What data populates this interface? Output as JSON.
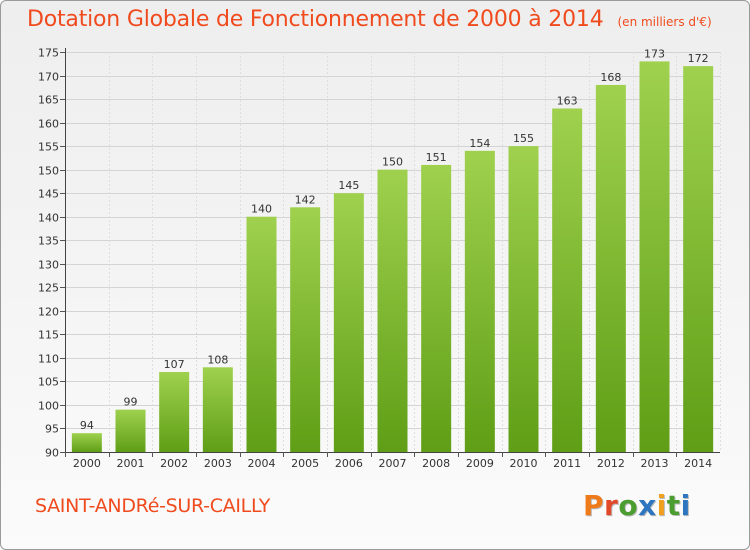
{
  "header": {
    "title": "Dotation Globale de Fonctionnement de 2000 à 2014",
    "unit": "(en milliers d'€)"
  },
  "footer": {
    "town": "SAINT-ANDRé-SUR-CAILLY",
    "brand_letters": [
      "P",
      "r",
      "o",
      "x",
      "i",
      "t",
      "i"
    ]
  },
  "colors": {
    "accent": "#f04b1e",
    "bar_top": "#9fd14e",
    "bar_bottom": "#5f9e16",
    "brand_letters": [
      "#ee7a1a",
      "#e2492a",
      "#4a9d2e",
      "#2e75c0",
      "#f0a01c",
      "#4a9d2e",
      "#2e75c0"
    ]
  },
  "chart_data": {
    "type": "bar",
    "title": "Dotation Globale de Fonctionnement de 2000 à 2014",
    "subtitle": "(en milliers d'€)",
    "xlabel": "",
    "ylabel": "",
    "categories": [
      "2000",
      "2001",
      "2002",
      "2003",
      "2004",
      "2005",
      "2006",
      "2007",
      "2008",
      "2009",
      "2010",
      "2011",
      "2012",
      "2013",
      "2014"
    ],
    "values": [
      94,
      99,
      107,
      108,
      140,
      142,
      145,
      150,
      151,
      154,
      155,
      163,
      168,
      173,
      172
    ],
    "ylim": [
      90,
      175
    ],
    "yticks": [
      90,
      95,
      100,
      105,
      110,
      115,
      120,
      125,
      130,
      135,
      140,
      145,
      150,
      155,
      160,
      165,
      170,
      175
    ],
    "grid": true,
    "data_labels": true
  }
}
